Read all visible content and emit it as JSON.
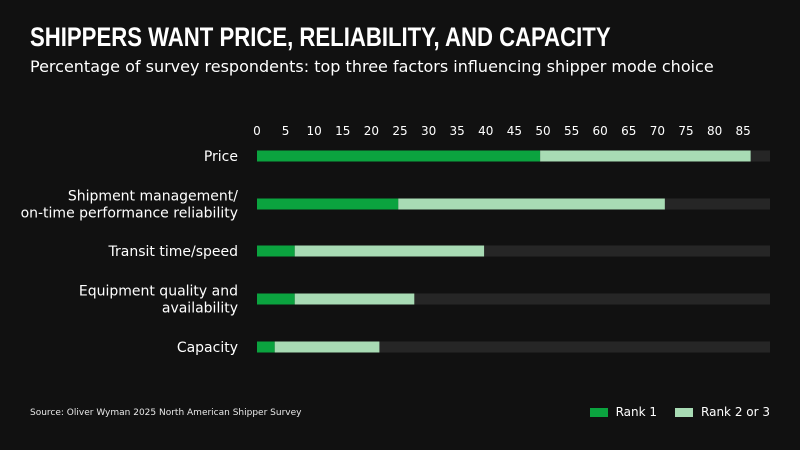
{
  "title": "SHIPPERS WANT PRICE, RELIABILITY, AND CAPACITY",
  "subtitle": "Percentage of survey respondents: top three factors influencing shipper mode choice",
  "source": "Source: Oliver Wyman 2025 North American Shipper Survey",
  "colors": {
    "rank1": "#0ba33f",
    "rank23": "#a8dbb4",
    "track": "#262626"
  },
  "chart_data": {
    "type": "bar",
    "orientation": "horizontal",
    "stacked": true,
    "categories": [
      [
        "Price"
      ],
      [
        "Shipment management/",
        "on-time performance reliability"
      ],
      [
        "Transit time/speed"
      ],
      [
        "Equipment quality and",
        "availability"
      ],
      [
        "Capacity"
      ]
    ],
    "series": [
      {
        "name": "Rank 1",
        "values": [
          49.5,
          24.7,
          6.6,
          6.6,
          3.1
        ]
      },
      {
        "name": "Rank 2 or 3",
        "values": [
          36.8,
          46.6,
          33.1,
          20.9,
          18.3
        ]
      }
    ],
    "xticks": [
      0,
      5,
      10,
      15,
      20,
      25,
      30,
      35,
      40,
      45,
      50,
      55,
      60,
      65,
      70,
      75,
      80,
      85
    ],
    "xlim": [
      0,
      90
    ],
    "legend_position": "bottom-right",
    "grid": false
  }
}
